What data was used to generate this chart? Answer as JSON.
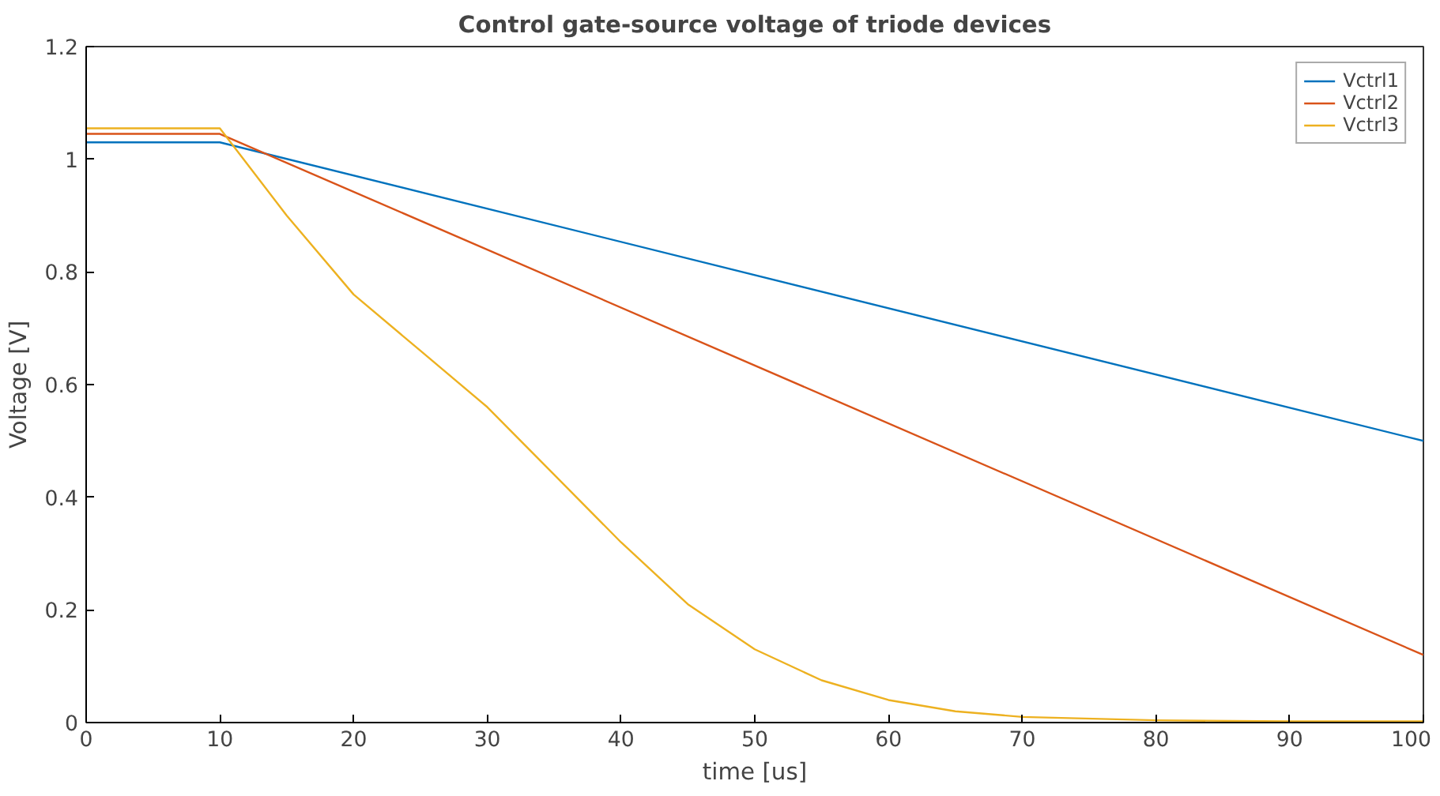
{
  "chart_data": {
    "type": "line",
    "title": "Control gate-source voltage of triode devices",
    "xlabel": "time [us]",
    "ylabel": "Voltage [V]",
    "xlim": [
      0,
      100
    ],
    "ylim": [
      0,
      1.2
    ],
    "xticks": [
      0,
      10,
      20,
      30,
      40,
      50,
      60,
      70,
      80,
      90,
      100
    ],
    "yticks": [
      0,
      0.2,
      0.4,
      0.6,
      0.8,
      1,
      1.2
    ],
    "grid": false,
    "legend": "top right",
    "series": [
      {
        "name": "Vctrl1",
        "color": "#0072bd",
        "x": [
          0,
          10,
          100
        ],
        "values": [
          1.03,
          1.03,
          0.5
        ]
      },
      {
        "name": "Vctrl2",
        "color": "#d95319",
        "x": [
          0,
          10,
          100
        ],
        "values": [
          1.045,
          1.045,
          0.12
        ]
      },
      {
        "name": "Vctrl3",
        "color": "#edb120",
        "x": [
          0,
          10,
          15,
          20,
          25,
          30,
          35,
          40,
          45,
          50,
          55,
          60,
          65,
          70,
          80,
          90,
          100
        ],
        "values": [
          1.055,
          1.055,
          0.9,
          0.76,
          0.66,
          0.56,
          0.44,
          0.32,
          0.21,
          0.13,
          0.075,
          0.04,
          0.02,
          0.01,
          0.004,
          0.002,
          0.002
        ]
      }
    ]
  }
}
